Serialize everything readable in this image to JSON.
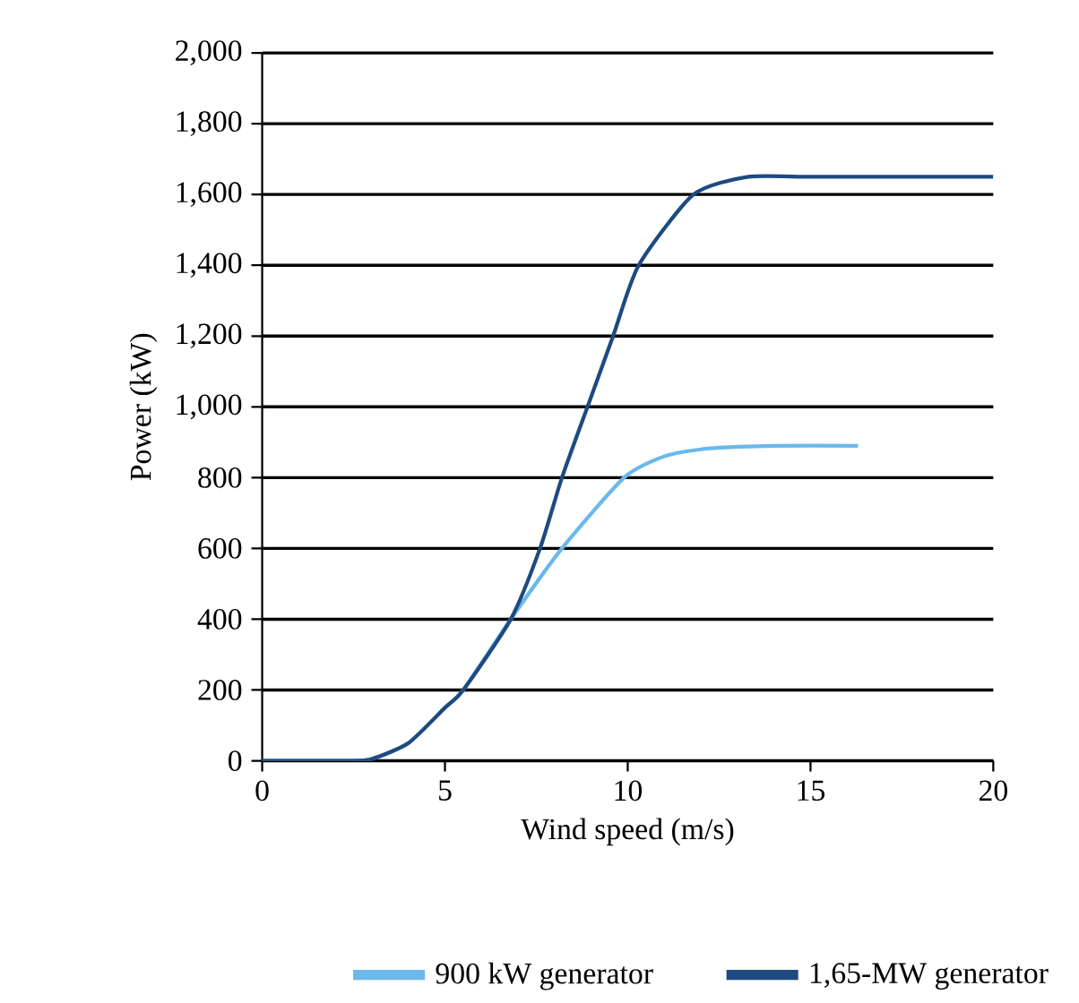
{
  "chart_data": {
    "type": "line",
    "xlabel": "Wind speed (m/s)",
    "ylabel": "Power (kW)",
    "xlim": [
      0,
      20
    ],
    "xticks": [
      0,
      5,
      10,
      15,
      20
    ],
    "ylim": [
      0,
      2000
    ],
    "yticks": [
      0,
      {
        "value": 200,
        "label": "200"
      },
      {
        "value": 400,
        "label": "400"
      },
      {
        "value": 600,
        "label": "600"
      },
      {
        "value": 800,
        "label": "800"
      },
      {
        "value": 1000,
        "label": "1,000"
      },
      {
        "value": 1200,
        "label": "1,200"
      },
      {
        "value": 1400,
        "label": "1,400"
      },
      {
        "value": 1600,
        "label": "1,600"
      },
      {
        "value": 1800,
        "label": "1,800"
      },
      {
        "value": 2000,
        "label": "2,000"
      }
    ],
    "grid": "y",
    "legend": "bottom",
    "marker": "none",
    "line_style": "solid",
    "series": [
      {
        "name": "900 kW generator",
        "color": "#6ab8ec",
        "x": [
          0,
          2.5,
          3,
          4,
          5,
          5.5,
          6.8,
          8.2,
          9.9,
          11,
          12,
          13,
          14,
          16.3
        ],
        "values": [
          0,
          0,
          5,
          50,
          150,
          200,
          400,
          600,
          800,
          860,
          880,
          887,
          890,
          890
        ]
      },
      {
        "name": "1,65-MW generator",
        "color": "#1d4a80",
        "x": [
          0,
          2.5,
          3,
          4,
          5,
          5.5,
          6.8,
          7.6,
          8.2,
          8.9,
          9.6,
          10.3,
          11.8,
          13.3,
          15,
          20
        ],
        "values": [
          0,
          0,
          5,
          50,
          150,
          200,
          400,
          600,
          800,
          1000,
          1200,
          1400,
          1600,
          1650,
          1650,
          1650
        ]
      }
    ]
  }
}
